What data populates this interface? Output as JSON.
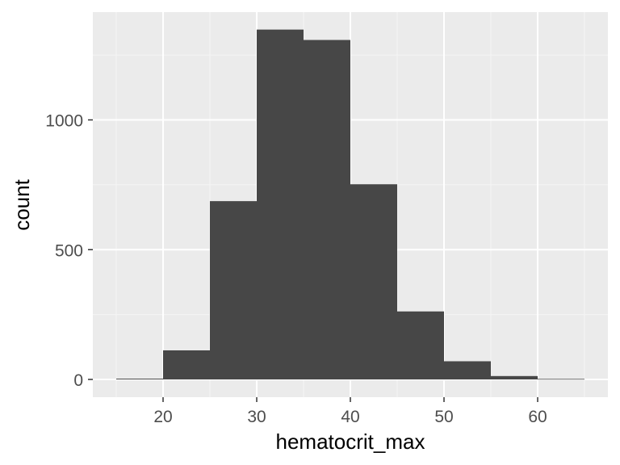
{
  "colors": {
    "panel_background": "#ebebeb",
    "grid_major": "#ffffff",
    "grid_minor": "#f5f5f5",
    "bar_fill": "#474747",
    "tick_text": "#4d4d4d",
    "tick_mark": "#333333",
    "axis_title": "#000000"
  },
  "chart_data": {
    "type": "bar",
    "subtype": "histogram",
    "xlabel": "hematocrit_max",
    "ylabel": "count",
    "xlim": [
      12.5,
      67.5
    ],
    "ylim": [
      0,
      1350
    ],
    "x_ticks": [
      20,
      30,
      40,
      50,
      60
    ],
    "y_ticks": [
      0,
      500,
      1000
    ],
    "grid": true,
    "bins": [
      {
        "x0": 15,
        "x1": 20,
        "count": 3
      },
      {
        "x0": 20,
        "x1": 25,
        "count": 112
      },
      {
        "x0": 25,
        "x1": 30,
        "count": 687
      },
      {
        "x0": 30,
        "x1": 35,
        "count": 1348
      },
      {
        "x0": 35,
        "x1": 40,
        "count": 1308
      },
      {
        "x0": 40,
        "x1": 45,
        "count": 752
      },
      {
        "x0": 45,
        "x1": 50,
        "count": 262
      },
      {
        "x0": 50,
        "x1": 55,
        "count": 70
      },
      {
        "x0": 55,
        "x1": 60,
        "count": 13
      },
      {
        "x0": 60,
        "x1": 65,
        "count": 2
      }
    ]
  }
}
